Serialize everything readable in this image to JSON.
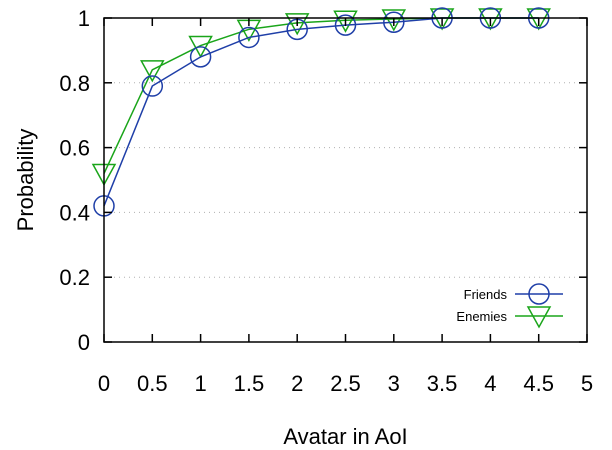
{
  "chart_data": {
    "type": "line",
    "xlabel": "Avatar in AoI",
    "ylabel": "Probability",
    "xlim": [
      0,
      5
    ],
    "ylim": [
      0,
      1
    ],
    "x_ticks": [
      "0",
      "0.5",
      "1",
      "1.5",
      "2",
      "2.5",
      "3",
      "3.5",
      "4",
      "4.5",
      "5"
    ],
    "y_ticks": [
      "0",
      "0.2",
      "0.4",
      "0.6",
      "0.8",
      "1"
    ],
    "grid": "horizontal-dotted",
    "legend_position": "bottom-right",
    "x": [
      0,
      0.5,
      1,
      1.5,
      2,
      2.5,
      3,
      3.5,
      4,
      4.5
    ],
    "series": [
      {
        "name": "Friends",
        "color": "#1f3fa8",
        "marker": "circle",
        "values": [
          0.42,
          0.79,
          0.88,
          0.94,
          0.965,
          0.978,
          0.987,
          1.0,
          1.0,
          1.0
        ]
      },
      {
        "name": "Enemies",
        "color": "#1aa51a",
        "marker": "triangle-down",
        "values": [
          0.52,
          0.84,
          0.915,
          0.965,
          0.985,
          0.993,
          0.997,
          1.0,
          1.0,
          1.0
        ]
      }
    ]
  }
}
